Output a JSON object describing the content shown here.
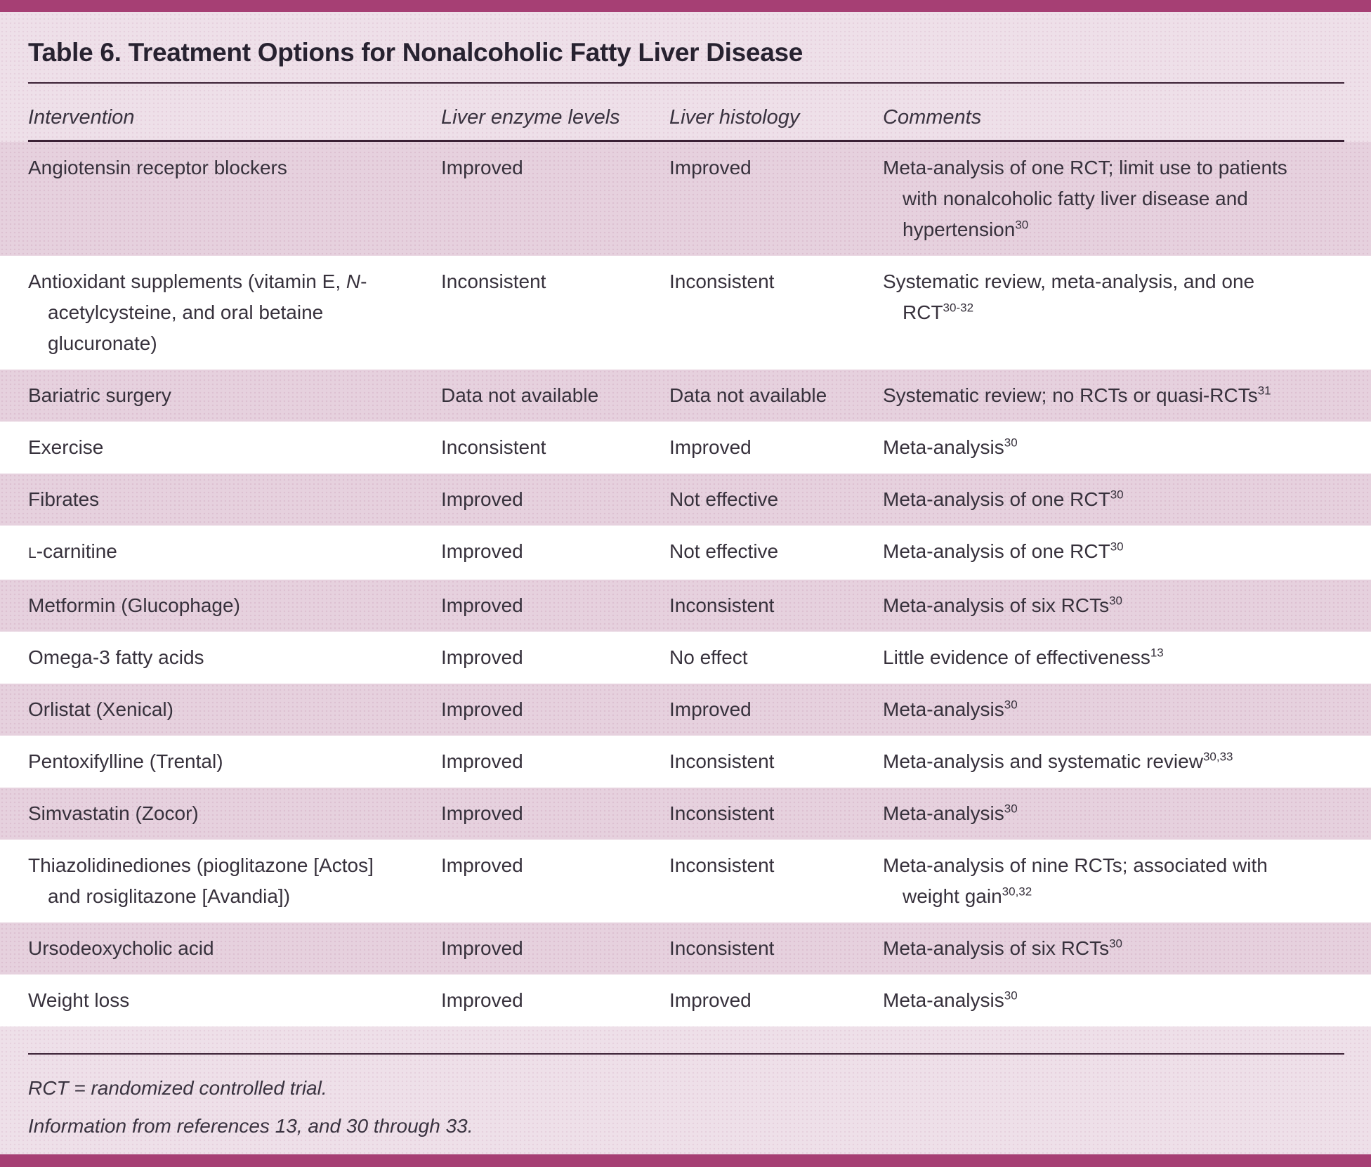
{
  "colors": {
    "top_bar": "#a63f74",
    "bottom_bar": "#a63f74",
    "page_background": "#eee0e9",
    "shaded_row": "#e6d1de",
    "rule": "#3b2135",
    "text": "#37313c"
  },
  "table": {
    "title": "Table 6. Treatment Options for Nonalcoholic Fatty Liver Disease",
    "columns": [
      "Intervention",
      "Liver enzyme levels",
      "Liver histology",
      "Comments"
    ],
    "rows": [
      {
        "shaded": true,
        "intervention": [
          {
            "t": "Angiotensin receptor blockers"
          }
        ],
        "liver_enzyme_levels": "Improved",
        "liver_histology": "Improved",
        "comment": {
          "text": "Meta-analysis of one RCT; limit use to patients with nonalcoholic fatty liver disease and hypertension",
          "sup": "30"
        }
      },
      {
        "shaded": false,
        "intervention": [
          {
            "t": "Antioxidant supplements (vitamin E, "
          },
          {
            "t": "N",
            "style": "italic"
          },
          {
            "t": "-acetylcysteine, and oral betaine glucuronate)"
          }
        ],
        "liver_enzyme_levels": "Inconsistent",
        "liver_histology": "Inconsistent",
        "comment": {
          "text": "Systematic review, meta-analysis, and one RCT",
          "sup": "30-32"
        }
      },
      {
        "shaded": true,
        "intervention": [
          {
            "t": "Bariatric surgery"
          }
        ],
        "liver_enzyme_levels": "Data not available",
        "liver_histology": "Data not available",
        "comment": {
          "text": "Systematic review; no RCTs or quasi-RCTs",
          "sup": "31"
        }
      },
      {
        "shaded": false,
        "intervention": [
          {
            "t": "Exercise"
          }
        ],
        "liver_enzyme_levels": "Inconsistent",
        "liver_histology": "Improved",
        "comment": {
          "text": "Meta-analysis",
          "sup": "30"
        }
      },
      {
        "shaded": true,
        "intervention": [
          {
            "t": "Fibrates"
          }
        ],
        "liver_enzyme_levels": "Improved",
        "liver_histology": "Not effective",
        "comment": {
          "text": "Meta-analysis of one RCT",
          "sup": "30"
        }
      },
      {
        "shaded": false,
        "intervention": [
          {
            "t": "L",
            "style": "smallcap"
          },
          {
            "t": "-carnitine"
          }
        ],
        "liver_enzyme_levels": "Improved",
        "liver_histology": "Not effective",
        "comment": {
          "text": "Meta-analysis of one RCT",
          "sup": "30"
        }
      },
      {
        "shaded": true,
        "intervention": [
          {
            "t": "Metformin (Glucophage)"
          }
        ],
        "liver_enzyme_levels": "Improved",
        "liver_histology": "Inconsistent",
        "comment": {
          "text": "Meta-analysis of six RCTs",
          "sup": "30"
        }
      },
      {
        "shaded": false,
        "intervention": [
          {
            "t": "Omega-3 fatty acids"
          }
        ],
        "liver_enzyme_levels": "Improved",
        "liver_histology": "No effect",
        "comment": {
          "text": "Little evidence of effectiveness",
          "sup": "13"
        }
      },
      {
        "shaded": true,
        "intervention": [
          {
            "t": "Orlistat (Xenical)"
          }
        ],
        "liver_enzyme_levels": "Improved",
        "liver_histology": "Improved",
        "comment": {
          "text": "Meta-analysis",
          "sup": "30"
        }
      },
      {
        "shaded": false,
        "intervention": [
          {
            "t": "Pentoxifylline (Trental)"
          }
        ],
        "liver_enzyme_levels": "Improved",
        "liver_histology": "Inconsistent",
        "comment": {
          "text": "Meta-analysis and systematic review",
          "sup": "30,33"
        }
      },
      {
        "shaded": true,
        "intervention": [
          {
            "t": "Simvastatin (Zocor)"
          }
        ],
        "liver_enzyme_levels": "Improved",
        "liver_histology": "Inconsistent",
        "comment": {
          "text": "Meta-analysis",
          "sup": "30"
        }
      },
      {
        "shaded": false,
        "intervention": [
          {
            "t": "Thiazolidinediones (pioglitazone [Actos] and rosiglitazone [Avandia])"
          }
        ],
        "liver_enzyme_levels": "Improved",
        "liver_histology": "Inconsistent",
        "comment": {
          "text": "Meta-analysis of nine RCTs; associated with weight gain",
          "sup": "30,32"
        }
      },
      {
        "shaded": true,
        "intervention": [
          {
            "t": "Ursodeoxycholic acid"
          }
        ],
        "liver_enzyme_levels": "Improved",
        "liver_histology": "Inconsistent",
        "comment": {
          "text": "Meta-analysis of six RCTs",
          "sup": "30"
        }
      },
      {
        "shaded": false,
        "intervention": [
          {
            "t": "Weight loss"
          }
        ],
        "liver_enzyme_levels": "Improved",
        "liver_histology": "Improved",
        "comment": {
          "text": "Meta-analysis",
          "sup": "30"
        }
      }
    ],
    "footnotes": [
      "RCT = randomized controlled trial.",
      "Information from references 13, and 30 through 33."
    ]
  }
}
